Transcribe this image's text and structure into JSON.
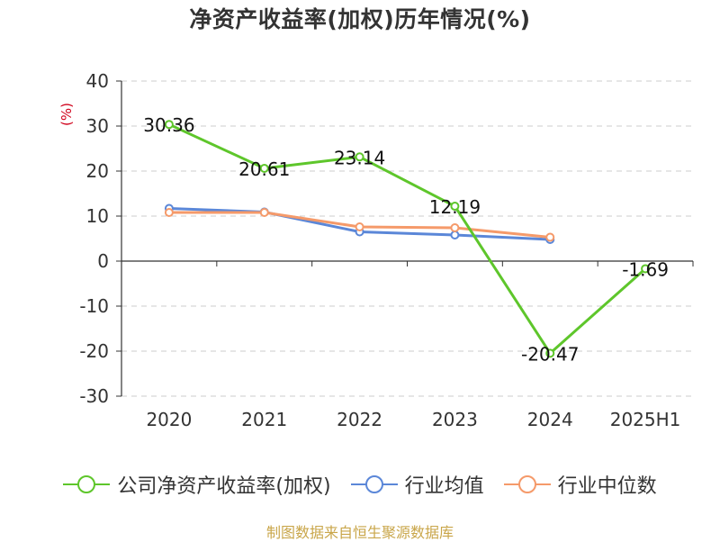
{
  "title": "净资产收益率(加权)历年情况(%)",
  "footer": "制图数据来自恒生聚源数据库",
  "chart_data": {
    "type": "line",
    "title": "净资产收益率(加权)历年情况(%)",
    "ylabel": "(%)",
    "ylim": [
      -30,
      40
    ],
    "yticks": [
      "40",
      "30",
      "20",
      "10",
      "0",
      "-10",
      "-20",
      "-30"
    ],
    "categories": [
      "2020",
      "2021",
      "2022",
      "2023",
      "2024",
      "2025H1"
    ],
    "grid": true,
    "legend_position": "bottom",
    "series": [
      {
        "name": "公司净资产收益率(加权)",
        "color": "#5ec62b",
        "values": [
          30.36,
          20.61,
          23.14,
          12.19,
          -20.47,
          -1.69
        ],
        "labels": [
          "30.36",
          "20.61",
          "23.14",
          "12.19",
          "-20.47",
          "-1.69"
        ]
      },
      {
        "name": "行业均值",
        "color": "#5b87d8",
        "values": [
          11.7,
          10.9,
          6.5,
          5.8,
          4.8,
          null
        ]
      },
      {
        "name": "行业中位数",
        "color": "#f59a6a",
        "values": [
          10.8,
          10.8,
          7.6,
          7.4,
          5.3,
          null
        ]
      }
    ]
  }
}
